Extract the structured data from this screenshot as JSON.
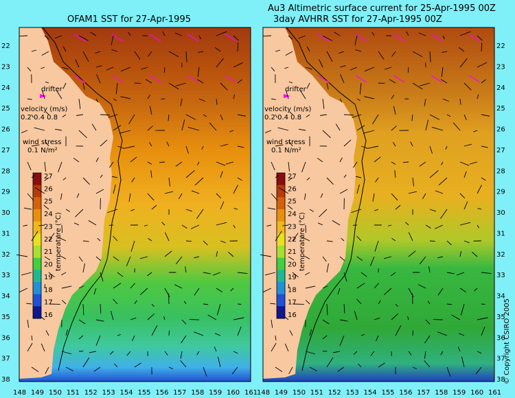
{
  "left_panel": {
    "title": "OFAM1 SST for 27-Apr-1995"
  },
  "right_panel": {
    "title_line1": "Au3 Altimetric surface current for 25-Apr-1995 00Z",
    "title_line2": "3day AVHRR SST for 27-Apr-1995 00Z"
  },
  "x_ticks": [
    "148",
    "149",
    "150",
    "151",
    "152",
    "153",
    "154",
    "155",
    "156",
    "157",
    "158",
    "159",
    "160",
    "161"
  ],
  "y_ticks": [
    "22",
    "23",
    "24",
    "25",
    "26",
    "27",
    "28",
    "29",
    "30",
    "31",
    "32",
    "33",
    "34",
    "35",
    "36",
    "37",
    "38"
  ],
  "legend": {
    "drifter": "drifter",
    "velocity_label": "velocity (m/s)",
    "velocity_values": "0.2 0.4 0.8",
    "wind_label": "wind stress",
    "wind_value": "0.1 N/m²",
    "colorbar_ticks": [
      "27",
      "26",
      "25",
      "24",
      "23",
      "22",
      "21",
      "20",
      "19",
      "18",
      "17",
      "16"
    ],
    "colorbar_label": "temperature (°C)"
  },
  "colorbar_colors": [
    "#8a0e0e",
    "#b83a08",
    "#d4620a",
    "#e8900e",
    "#f0b818",
    "#e8e020",
    "#a8e030",
    "#40d040",
    "#20b890",
    "#2090d8",
    "#2050d8",
    "#101890"
  ],
  "copyright": "© Copyright CSIRO 2005",
  "colors": {
    "land": "#f8c8a0",
    "background": "#80f0f8",
    "drifter": "#ff00ff"
  }
}
